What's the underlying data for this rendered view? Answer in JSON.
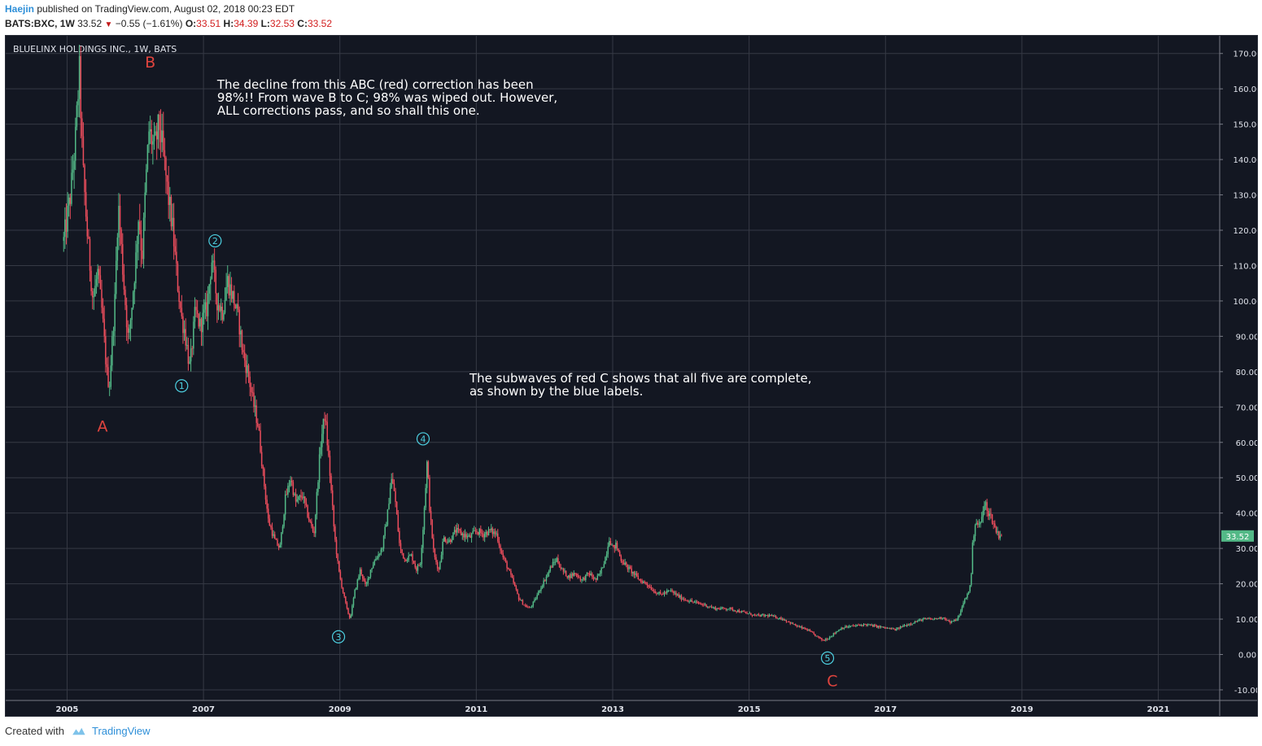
{
  "header": {
    "author": "Haejin",
    "published_text": "published on TradingView.com, August 02, 2018 00:23 EDT",
    "symbol": "BATS:BXC, 1W",
    "last": "33.52",
    "change": "−0.55 (−1.61%)",
    "o_label": "O:",
    "o_value": "33.51",
    "h_label": "H:",
    "h_value": "34.39",
    "l_label": "L:",
    "l_value": "32.53",
    "c_label": "C:",
    "c_value": "33.52"
  },
  "footer": {
    "created_with": "Created with",
    "brand": "TradingView"
  },
  "chart_data": {
    "type": "candlestick",
    "title": "BLUELINX HOLDINGS INC., 1W, BATS",
    "ylim": [
      -13,
      175
    ],
    "xlim": [
      2004.1,
      2021.9
    ],
    "y_ticks": [
      "170.00",
      "160.00",
      "150.00",
      "140.00",
      "130.00",
      "120.00",
      "110.00",
      "100.00",
      "90.00",
      "80.00",
      "70.00",
      "60.00",
      "50.00",
      "40.00",
      "30.00",
      "20.00",
      "10.00",
      "0.00",
      "-10.00"
    ],
    "x_ticks": [
      "2005",
      "2007",
      "2009",
      "2011",
      "2013",
      "2015",
      "2017",
      "2019",
      "2021"
    ],
    "last_price": "33.52",
    "colors": {
      "up": "#53b987",
      "down": "#eb4d5c",
      "bg": "#131722",
      "grid": "#363a45",
      "text": "#e0e3eb",
      "red_label": "#e0443e",
      "blue_label": "#4dd0e1",
      "price_tag": "#53b987"
    },
    "price_path": [
      [
        2004.95,
        117
      ],
      [
        2005.05,
        130
      ],
      [
        2005.12,
        145
      ],
      [
        2005.18,
        165
      ],
      [
        2005.23,
        138
      ],
      [
        2005.3,
        118
      ],
      [
        2005.38,
        100
      ],
      [
        2005.45,
        108
      ],
      [
        2005.52,
        95
      ],
      [
        2005.58,
        80
      ],
      [
        2005.62,
        76
      ],
      [
        2005.7,
        100
      ],
      [
        2005.75,
        128
      ],
      [
        2005.82,
        108
      ],
      [
        2005.9,
        88
      ],
      [
        2006.0,
        110
      ],
      [
        2006.05,
        125
      ],
      [
        2006.1,
        112
      ],
      [
        2006.15,
        132
      ],
      [
        2006.2,
        148
      ],
      [
        2006.28,
        143
      ],
      [
        2006.35,
        150
      ],
      [
        2006.42,
        140
      ],
      [
        2006.48,
        130
      ],
      [
        2006.55,
        120
      ],
      [
        2006.62,
        105
      ],
      [
        2006.68,
        95
      ],
      [
        2006.72,
        92
      ],
      [
        2006.8,
        81
      ],
      [
        2006.88,
        97
      ],
      [
        2006.95,
        93
      ],
      [
        2007.05,
        98
      ],
      [
        2007.12,
        112
      ],
      [
        2007.2,
        100
      ],
      [
        2007.28,
        97
      ],
      [
        2007.35,
        106
      ],
      [
        2007.45,
        100
      ],
      [
        2007.52,
        94
      ],
      [
        2007.58,
        85
      ],
      [
        2007.65,
        80
      ],
      [
        2007.72,
        72
      ],
      [
        2007.8,
        65
      ],
      [
        2007.88,
        50
      ],
      [
        2007.95,
        38
      ],
      [
        2008.05,
        32
      ],
      [
        2008.12,
        30
      ],
      [
        2008.2,
        44
      ],
      [
        2008.28,
        50
      ],
      [
        2008.35,
        43
      ],
      [
        2008.45,
        45
      ],
      [
        2008.55,
        38
      ],
      [
        2008.62,
        34
      ],
      [
        2008.68,
        50
      ],
      [
        2008.72,
        60
      ],
      [
        2008.78,
        68
      ],
      [
        2008.85,
        52
      ],
      [
        2008.92,
        34
      ],
      [
        2008.98,
        24
      ],
      [
        2009.02,
        20
      ],
      [
        2009.1,
        13
      ],
      [
        2009.15,
        10
      ],
      [
        2009.22,
        18
      ],
      [
        2009.3,
        24
      ],
      [
        2009.38,
        19
      ],
      [
        2009.45,
        24
      ],
      [
        2009.52,
        27
      ],
      [
        2009.62,
        30
      ],
      [
        2009.7,
        40
      ],
      [
        2009.75,
        50
      ],
      [
        2009.8,
        46
      ],
      [
        2009.88,
        30
      ],
      [
        2009.95,
        27
      ],
      [
        2010.05,
        28
      ],
      [
        2010.12,
        24
      ],
      [
        2010.18,
        26
      ],
      [
        2010.22,
        36
      ],
      [
        2010.28,
        55
      ],
      [
        2010.32,
        40
      ],
      [
        2010.38,
        28
      ],
      [
        2010.45,
        24
      ],
      [
        2010.52,
        33
      ],
      [
        2010.6,
        32
      ],
      [
        2010.7,
        35
      ],
      [
        2010.8,
        34
      ],
      [
        2010.9,
        33
      ],
      [
        2011.0,
        35
      ],
      [
        2011.1,
        34
      ],
      [
        2011.2,
        35
      ],
      [
        2011.3,
        34
      ],
      [
        2011.38,
        28
      ],
      [
        2011.45,
        25
      ],
      [
        2011.55,
        20
      ],
      [
        2011.62,
        16
      ],
      [
        2011.7,
        14
      ],
      [
        2011.78,
        13
      ],
      [
        2011.85,
        15
      ],
      [
        2011.92,
        18
      ],
      [
        2012.0,
        21
      ],
      [
        2012.1,
        25
      ],
      [
        2012.18,
        27
      ],
      [
        2012.25,
        24
      ],
      [
        2012.35,
        22
      ],
      [
        2012.45,
        23
      ],
      [
        2012.55,
        21
      ],
      [
        2012.65,
        23
      ],
      [
        2012.75,
        21
      ],
      [
        2012.82,
        23
      ],
      [
        2012.9,
        28
      ],
      [
        2012.95,
        33
      ],
      [
        2013.0,
        30
      ],
      [
        2013.05,
        31
      ],
      [
        2013.12,
        27
      ],
      [
        2013.2,
        25
      ],
      [
        2013.3,
        23
      ],
      [
        2013.4,
        21
      ],
      [
        2013.5,
        20
      ],
      [
        2013.6,
        18
      ],
      [
        2013.7,
        17
      ],
      [
        2013.85,
        18
      ],
      [
        2014.0,
        16
      ],
      [
        2014.15,
        15
      ],
      [
        2014.35,
        14
      ],
      [
        2014.5,
        13
      ],
      [
        2014.7,
        13
      ],
      [
        2014.9,
        12
      ],
      [
        2015.1,
        11
      ],
      [
        2015.3,
        11
      ],
      [
        2015.5,
        10
      ],
      [
        2015.7,
        8
      ],
      [
        2015.85,
        7
      ],
      [
        2016.0,
        5
      ],
      [
        2016.08,
        4
      ],
      [
        2016.15,
        4.5
      ],
      [
        2016.25,
        6
      ],
      [
        2016.35,
        7.5
      ],
      [
        2016.5,
        8
      ],
      [
        2016.7,
        8.5
      ],
      [
        2016.85,
        8
      ],
      [
        2017.0,
        7.5
      ],
      [
        2017.15,
        7
      ],
      [
        2017.25,
        8
      ],
      [
        2017.4,
        9
      ],
      [
        2017.55,
        10
      ],
      [
        2017.7,
        10
      ],
      [
        2017.85,
        10.5
      ],
      [
        2017.95,
        9
      ],
      [
        2018.05,
        10
      ],
      [
        2018.1,
        12
      ],
      [
        2018.15,
        15
      ],
      [
        2018.2,
        17
      ],
      [
        2018.25,
        20
      ],
      [
        2018.28,
        32
      ],
      [
        2018.32,
        38
      ],
      [
        2018.38,
        36
      ],
      [
        2018.42,
        40
      ],
      [
        2018.48,
        43
      ],
      [
        2018.5,
        40
      ],
      [
        2018.55,
        39
      ],
      [
        2018.6,
        36
      ],
      [
        2018.65,
        34
      ],
      [
        2018.7,
        33.52
      ]
    ],
    "wave_labels_red": [
      {
        "text": "A",
        "x": 2005.52,
        "y": 63
      },
      {
        "text": "B",
        "x": 2006.22,
        "y": 166
      },
      {
        "text": "C",
        "x": 2016.22,
        "y": -9
      }
    ],
    "wave_labels_blue": [
      {
        "text": "1",
        "x": 2006.68,
        "y": 76
      },
      {
        "text": "2",
        "x": 2007.17,
        "y": 117
      },
      {
        "text": "3",
        "x": 2008.98,
        "y": 5
      },
      {
        "text": "4",
        "x": 2010.22,
        "y": 61
      },
      {
        "text": "5",
        "x": 2016.15,
        "y": -1
      }
    ],
    "annotations": [
      {
        "lines": [
          "The decline from this ABC (red) correction has been",
          "98%!! From wave B to C; 98% was wiped out. However,",
          "ALL corrections pass, and so shall this one."
        ],
        "x": 2007.2,
        "y": 160
      },
      {
        "lines": [
          "The subwaves of red C shows that all five are complete,",
          "as shown by the blue labels."
        ],
        "x": 2010.9,
        "y": 77
      }
    ]
  }
}
